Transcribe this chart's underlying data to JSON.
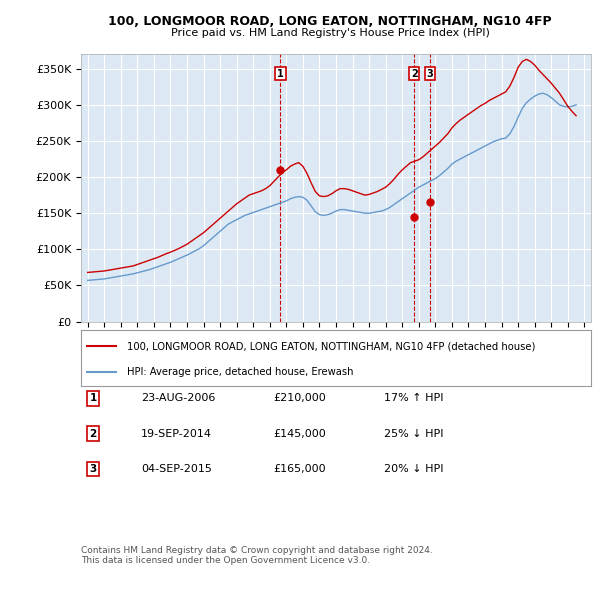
{
  "title1": "100, LONGMOOR ROAD, LONG EATON, NOTTINGHAM, NG10 4FP",
  "title2": "Price paid vs. HM Land Registry's House Price Index (HPI)",
  "ylabel_ticks": [
    "£0",
    "£50K",
    "£100K",
    "£150K",
    "£200K",
    "£250K",
    "£300K",
    "£350K"
  ],
  "ytick_values": [
    0,
    50000,
    100000,
    150000,
    200000,
    250000,
    300000,
    350000
  ],
  "ylim": [
    0,
    370000
  ],
  "xlim_start": 1994.6,
  "xlim_end": 2025.4,
  "bg_color": "#dce9f5",
  "line_color_red": "#cc0000",
  "line_color_blue": "#6699cc",
  "grid_color": "#ffffff",
  "sale_dates": [
    2006.646,
    2014.721,
    2015.676
  ],
  "sale_prices": [
    210000,
    145000,
    165000
  ],
  "sale_labels": [
    "1",
    "2",
    "3"
  ],
  "legend_label_red": "100, LONGMOOR ROAD, LONG EATON, NOTTINGHAM, NG10 4FP (detached house)",
  "legend_label_blue": "HPI: Average price, detached house, Erewash",
  "table_data": [
    [
      "1",
      "23-AUG-2006",
      "£210,000",
      "17% ↑ HPI"
    ],
    [
      "2",
      "19-SEP-2014",
      "£145,000",
      "25% ↓ HPI"
    ],
    [
      "3",
      "04-SEP-2015",
      "£165,000",
      "20% ↓ HPI"
    ]
  ],
  "footnote": "Contains HM Land Registry data © Crown copyright and database right 2024.\nThis data is licensed under the Open Government Licence v3.0.",
  "hpi_years": [
    1995.0,
    1995.25,
    1995.5,
    1995.75,
    1996.0,
    1996.25,
    1996.5,
    1996.75,
    1997.0,
    1997.25,
    1997.5,
    1997.75,
    1998.0,
    1998.25,
    1998.5,
    1998.75,
    1999.0,
    1999.25,
    1999.5,
    1999.75,
    2000.0,
    2000.25,
    2000.5,
    2000.75,
    2001.0,
    2001.25,
    2001.5,
    2001.75,
    2002.0,
    2002.25,
    2002.5,
    2002.75,
    2003.0,
    2003.25,
    2003.5,
    2003.75,
    2004.0,
    2004.25,
    2004.5,
    2004.75,
    2005.0,
    2005.25,
    2005.5,
    2005.75,
    2006.0,
    2006.25,
    2006.5,
    2006.75,
    2007.0,
    2007.25,
    2007.5,
    2007.75,
    2008.0,
    2008.25,
    2008.5,
    2008.75,
    2009.0,
    2009.25,
    2009.5,
    2009.75,
    2010.0,
    2010.25,
    2010.5,
    2010.75,
    2011.0,
    2011.25,
    2011.5,
    2011.75,
    2012.0,
    2012.25,
    2012.5,
    2012.75,
    2013.0,
    2013.25,
    2013.5,
    2013.75,
    2014.0,
    2014.25,
    2014.5,
    2014.75,
    2015.0,
    2015.25,
    2015.5,
    2015.75,
    2016.0,
    2016.25,
    2016.5,
    2016.75,
    2017.0,
    2017.25,
    2017.5,
    2017.75,
    2018.0,
    2018.25,
    2018.5,
    2018.75,
    2019.0,
    2019.25,
    2019.5,
    2019.75,
    2020.0,
    2020.25,
    2020.5,
    2020.75,
    2021.0,
    2021.25,
    2021.5,
    2021.75,
    2022.0,
    2022.25,
    2022.5,
    2022.75,
    2023.0,
    2023.25,
    2023.5,
    2023.75,
    2024.0,
    2024.25,
    2024.5
  ],
  "hpi_values": [
    57000,
    57500,
    58000,
    58500,
    59000,
    60000,
    61000,
    62000,
    63000,
    64000,
    65000,
    66000,
    67500,
    69000,
    70500,
    72000,
    74000,
    76000,
    78000,
    80000,
    82000,
    84500,
    87000,
    89500,
    92000,
    95000,
    98000,
    101000,
    105000,
    110000,
    115000,
    120000,
    125000,
    130000,
    135000,
    138000,
    141000,
    144000,
    147000,
    149000,
    151000,
    153000,
    155000,
    157000,
    159000,
    161000,
    163000,
    165000,
    167000,
    170000,
    172000,
    173000,
    172000,
    168000,
    160000,
    152000,
    148000,
    147000,
    148000,
    150000,
    153000,
    155000,
    155000,
    154000,
    153000,
    152000,
    151000,
    150000,
    150000,
    151000,
    152000,
    153000,
    155000,
    158000,
    162000,
    166000,
    170000,
    174000,
    178000,
    182000,
    186000,
    189000,
    192000,
    195000,
    198000,
    202000,
    207000,
    212000,
    218000,
    222000,
    225000,
    228000,
    231000,
    234000,
    237000,
    240000,
    243000,
    246000,
    249000,
    251000,
    253000,
    254000,
    260000,
    270000,
    283000,
    295000,
    303000,
    308000,
    312000,
    315000,
    316000,
    314000,
    310000,
    305000,
    300000,
    298000,
    297000,
    298000,
    300000
  ],
  "red_years": [
    1995.0,
    1995.25,
    1995.5,
    1995.75,
    1996.0,
    1996.25,
    1996.5,
    1996.75,
    1997.0,
    1997.25,
    1997.5,
    1997.75,
    1998.0,
    1998.25,
    1998.5,
    1998.75,
    1999.0,
    1999.25,
    1999.5,
    1999.75,
    2000.0,
    2000.25,
    2000.5,
    2000.75,
    2001.0,
    2001.25,
    2001.5,
    2001.75,
    2002.0,
    2002.25,
    2002.5,
    2002.75,
    2003.0,
    2003.25,
    2003.5,
    2003.75,
    2004.0,
    2004.25,
    2004.5,
    2004.75,
    2005.0,
    2005.25,
    2005.5,
    2005.75,
    2006.0,
    2006.25,
    2006.5,
    2006.75,
    2007.0,
    2007.25,
    2007.5,
    2007.75,
    2008.0,
    2008.25,
    2008.5,
    2008.75,
    2009.0,
    2009.25,
    2009.5,
    2009.75,
    2010.0,
    2010.25,
    2010.5,
    2010.75,
    2011.0,
    2011.25,
    2011.5,
    2011.75,
    2012.0,
    2012.25,
    2012.5,
    2012.75,
    2013.0,
    2013.25,
    2013.5,
    2013.75,
    2014.0,
    2014.25,
    2014.5,
    2014.75,
    2015.0,
    2015.25,
    2015.5,
    2015.75,
    2016.0,
    2016.25,
    2016.5,
    2016.75,
    2017.0,
    2017.25,
    2017.5,
    2017.75,
    2018.0,
    2018.25,
    2018.5,
    2018.75,
    2019.0,
    2019.25,
    2019.5,
    2019.75,
    2020.0,
    2020.25,
    2020.5,
    2020.75,
    2021.0,
    2021.25,
    2021.5,
    2021.75,
    2022.0,
    2022.25,
    2022.5,
    2022.75,
    2023.0,
    2023.25,
    2023.5,
    2023.75,
    2024.0,
    2024.25,
    2024.5
  ],
  "red_values": [
    68000,
    68500,
    69000,
    69500,
    70000,
    71000,
    72000,
    73000,
    74000,
    75000,
    76000,
    77000,
    79000,
    81000,
    83000,
    85000,
    87000,
    89000,
    91500,
    94000,
    96000,
    98500,
    101000,
    104000,
    107000,
    111000,
    115000,
    119000,
    123000,
    128000,
    133000,
    138000,
    143000,
    148000,
    153000,
    158000,
    163000,
    167000,
    171000,
    175000,
    177000,
    179000,
    181000,
    184000,
    188000,
    194000,
    200000,
    206000,
    210000,
    215000,
    218000,
    220000,
    215000,
    205000,
    192000,
    180000,
    174000,
    173000,
    174000,
    177000,
    181000,
    184000,
    184000,
    183000,
    181000,
    179000,
    177000,
    175000,
    176000,
    178000,
    180000,
    183000,
    186000,
    191000,
    197000,
    204000,
    210000,
    215000,
    220000,
    222000,
    224000,
    228000,
    233000,
    238000,
    243000,
    248000,
    254000,
    260000,
    268000,
    274000,
    279000,
    283000,
    287000,
    291000,
    295000,
    299000,
    302000,
    306000,
    309000,
    312000,
    315000,
    318000,
    326000,
    338000,
    352000,
    360000,
    363000,
    360000,
    355000,
    348000,
    342000,
    336000,
    330000,
    323000,
    316000,
    307000,
    298000,
    291000,
    285000
  ]
}
